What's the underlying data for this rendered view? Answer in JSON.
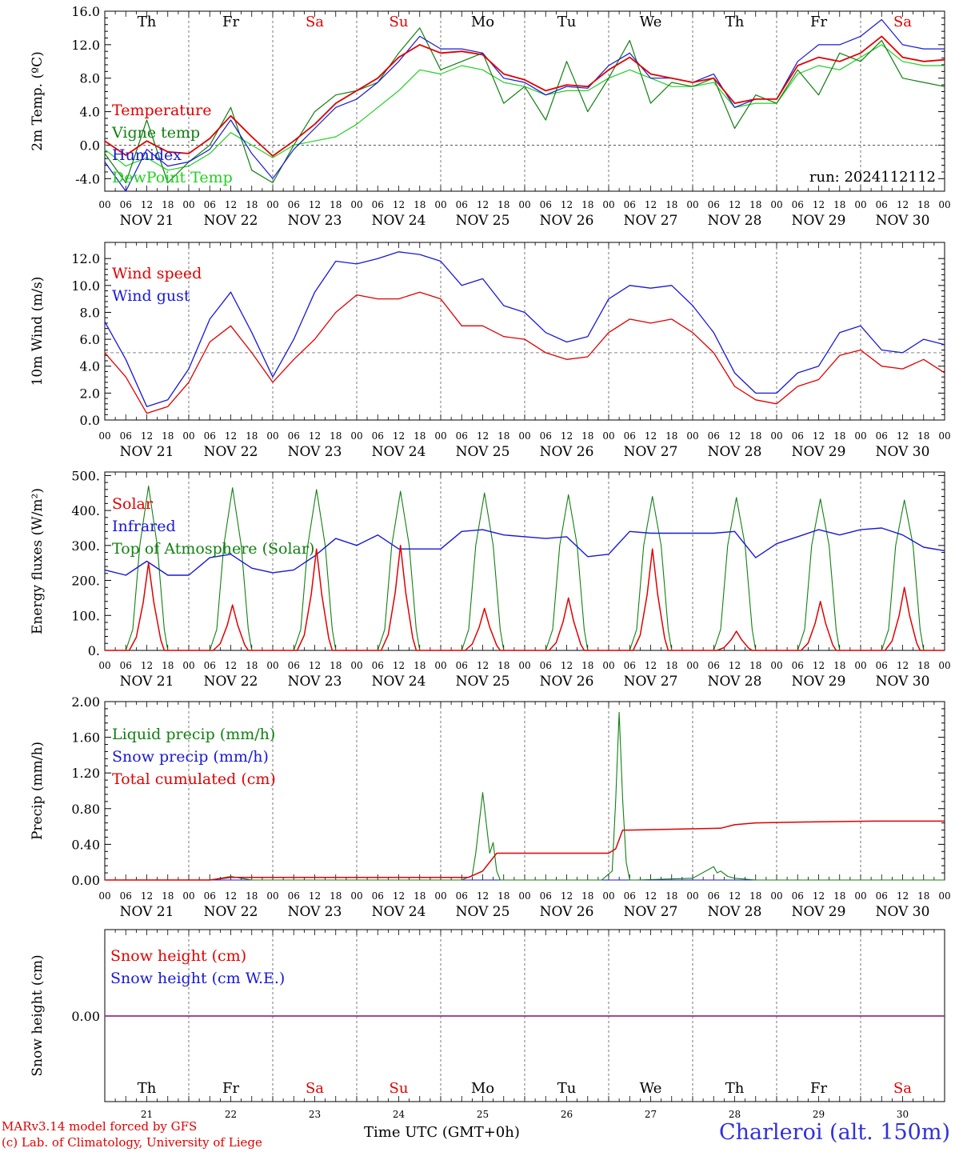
{
  "colors": {
    "red": "#e00000",
    "green": "#108010",
    "blue": "#1818d8",
    "lightgreen": "#22d022",
    "purple": "#8a2090",
    "grid": "#555555"
  },
  "weekdays": [
    {
      "label": "Th",
      "weekend": false
    },
    {
      "label": "Fr",
      "weekend": false
    },
    {
      "label": "Sa",
      "weekend": true
    },
    {
      "label": "Su",
      "weekend": true
    },
    {
      "label": "Mo",
      "weekend": false
    },
    {
      "label": "Tu",
      "weekend": false
    },
    {
      "label": "We",
      "weekend": false
    },
    {
      "label": "Th",
      "weekend": false
    },
    {
      "label": "Fr",
      "weekend": false
    },
    {
      "label": "Sa",
      "weekend": true
    }
  ],
  "hour_ticks": [
    "00",
    "06",
    "12",
    "18"
  ],
  "end_hour_tick": "00",
  "date_labels": [
    "NOV 21",
    "NOV 22",
    "NOV 23",
    "NOV 24",
    "NOV 25",
    "NOV 26",
    "NOV 27",
    "NOV 28",
    "NOV 29",
    "NOV 30"
  ],
  "day_numbers": [
    "21",
    "22",
    "23",
    "24",
    "25",
    "26",
    "27",
    "28",
    "29",
    "30"
  ],
  "footer": {
    "model": "MARv3.14 model forced by GFS",
    "lab": "(c) Lab. of Climatology, University of Liege",
    "xtitle": "Time UTC (GMT+0h)",
    "station": "Charleroi (alt. 150m)"
  },
  "chart_data": [
    {
      "type": "line",
      "ylabel": "2m Temp. (ºC)",
      "ylim": [
        -5.5,
        16
      ],
      "yticks": [
        "16.0",
        "12.0",
        "8.0",
        "4.0",
        "0.0",
        "-4.0"
      ],
      "ytick_values": [
        16,
        12,
        8,
        4,
        0,
        -4
      ],
      "ref_line": 0,
      "annotation": "run: 2024112112",
      "x_hours": [
        0,
        6,
        12,
        18,
        24,
        30,
        36,
        42,
        48,
        54,
        60,
        66,
        72,
        78,
        84,
        90,
        96,
        102,
        108,
        114,
        120,
        126,
        132,
        138,
        144,
        150,
        156,
        162,
        168,
        174,
        180,
        186,
        192,
        198,
        204,
        210,
        216,
        222,
        228,
        234,
        240
      ],
      "series": [
        {
          "name": "Temperature",
          "color": "red",
          "values": [
            0.5,
            -1.2,
            0.5,
            -0.8,
            -1.0,
            0.8,
            3.5,
            1.0,
            -1.3,
            0.5,
            2.5,
            5.0,
            6.5,
            8.0,
            10.5,
            12.0,
            11.0,
            11.2,
            10.8,
            8.5,
            7.8,
            6.5,
            7.2,
            7.0,
            9.0,
            10.5,
            8.5,
            8.0,
            7.5,
            8.0,
            5.0,
            5.5,
            5.5,
            9.5,
            10.5,
            10.0,
            11.0,
            13.0,
            10.5,
            10.0,
            10.2
          ]
        },
        {
          "name": "Vigne temp",
          "color": "green",
          "values": [
            -1.0,
            -4.5,
            3.0,
            -4.5,
            -2.0,
            0.0,
            4.5,
            -3.0,
            -4.5,
            0.0,
            4.0,
            6.0,
            6.5,
            7.5,
            11.0,
            14.0,
            9.0,
            10.0,
            11.0,
            5.0,
            7.0,
            3.0,
            10.0,
            4.0,
            8.0,
            12.5,
            5.0,
            7.5,
            7.0,
            8.0,
            2.0,
            6.0,
            5.0,
            9.0,
            6.0,
            11.0,
            10.0,
            12.5,
            8.0,
            7.5,
            7.0
          ]
        },
        {
          "name": "Humidex",
          "color": "blue",
          "values": [
            -2.0,
            -5.5,
            -0.5,
            -2.5,
            -2.0,
            -0.5,
            3.0,
            -1.0,
            -4.0,
            -0.5,
            2.0,
            4.5,
            5.5,
            7.5,
            10.0,
            13.0,
            11.5,
            11.5,
            11.0,
            8.0,
            7.5,
            6.0,
            7.0,
            6.8,
            9.5,
            11.0,
            8.0,
            8.0,
            7.5,
            8.5,
            4.5,
            5.5,
            5.5,
            10.0,
            12.0,
            12.0,
            13.0,
            15.0,
            12.0,
            11.5,
            11.5
          ]
        },
        {
          "name": "DewPoint Temp",
          "color": "lightgreen",
          "values": [
            -0.5,
            -2.5,
            -1.5,
            -3.0,
            -2.5,
            -1.0,
            1.5,
            0.0,
            -1.5,
            0.0,
            0.5,
            1.0,
            2.5,
            4.5,
            6.5,
            9.0,
            8.5,
            9.5,
            9.0,
            7.5,
            7.0,
            6.0,
            6.5,
            6.5,
            8.0,
            9.0,
            8.0,
            7.0,
            7.0,
            7.5,
            4.5,
            5.0,
            5.0,
            8.5,
            9.5,
            9.0,
            10.5,
            12.0,
            10.0,
            9.5,
            9.5
          ]
        }
      ]
    },
    {
      "type": "line",
      "ylabel": "10m Wind (m/s)",
      "ylim": [
        0,
        13.2
      ],
      "yticks": [
        "12.0",
        "10.0",
        "8.0",
        "6.0",
        "4.0",
        "2.0",
        "0.0"
      ],
      "ytick_values": [
        12,
        10,
        8,
        6,
        4,
        2,
        0
      ],
      "ref_line": 5,
      "x_hours": [
        0,
        6,
        12,
        18,
        24,
        30,
        36,
        42,
        48,
        54,
        60,
        66,
        72,
        78,
        84,
        90,
        96,
        102,
        108,
        114,
        120,
        126,
        132,
        138,
        144,
        150,
        156,
        162,
        168,
        174,
        180,
        186,
        192,
        198,
        204,
        210,
        216,
        222,
        228,
        234,
        240
      ],
      "series": [
        {
          "name": "Wind speed",
          "color": "red",
          "values": [
            5.0,
            3.2,
            0.5,
            1.0,
            2.8,
            5.8,
            7.0,
            5.0,
            2.8,
            4.5,
            6.0,
            8.0,
            9.3,
            9.0,
            9.0,
            9.5,
            9.0,
            7.0,
            7.0,
            6.2,
            6.0,
            5.0,
            4.5,
            4.7,
            6.5,
            7.5,
            7.2,
            7.5,
            6.5,
            5.0,
            2.5,
            1.5,
            1.2,
            2.5,
            3.0,
            4.8,
            5.2,
            4.0,
            3.8,
            4.5,
            3.5
          ]
        },
        {
          "name": "Wind gust",
          "color": "blue",
          "values": [
            7.3,
            4.5,
            1.0,
            1.5,
            3.8,
            7.5,
            9.5,
            6.5,
            3.2,
            6.0,
            9.5,
            11.8,
            11.6,
            12.0,
            12.5,
            12.3,
            11.8,
            10.0,
            10.5,
            8.5,
            8.0,
            6.5,
            5.8,
            6.2,
            9.0,
            10.0,
            9.8,
            10.0,
            8.5,
            6.5,
            3.5,
            2.0,
            2.0,
            3.5,
            4.0,
            6.5,
            7.0,
            5.2,
            5.0,
            6.0,
            5.6
          ]
        }
      ]
    },
    {
      "type": "line",
      "ylabel": "Energy fluxes (W/m²)",
      "ylim": [
        0,
        510
      ],
      "yticks": [
        "500.",
        "400.",
        "300.",
        "200.",
        "100.",
        "0."
      ],
      "ytick_values": [
        500,
        400,
        300,
        200,
        100,
        0
      ],
      "solar_peaks": [
        250,
        130,
        290,
        300,
        120,
        150,
        290,
        55,
        140,
        180
      ],
      "toa_peaks": [
        470,
        465,
        460,
        455,
        450,
        445,
        440,
        437,
        433,
        430
      ],
      "series": [
        {
          "name": "Solar",
          "color": "red"
        },
        {
          "name": "Infrared",
          "color": "blue",
          "x_hours": [
            0,
            6,
            12,
            18,
            24,
            30,
            36,
            42,
            48,
            54,
            60,
            66,
            72,
            78,
            84,
            90,
            96,
            102,
            108,
            114,
            120,
            126,
            132,
            138,
            144,
            150,
            156,
            162,
            168,
            174,
            180,
            186,
            192,
            198,
            204,
            210,
            216,
            222,
            228,
            234,
            240
          ],
          "values": [
            230,
            215,
            255,
            215,
            215,
            265,
            275,
            235,
            222,
            230,
            270,
            320,
            300,
            330,
            290,
            290,
            290,
            340,
            345,
            330,
            325,
            320,
            325,
            268,
            275,
            340,
            335,
            335,
            335,
            335,
            340,
            265,
            305,
            325,
            345,
            330,
            345,
            350,
            330,
            295,
            285
          ]
        },
        {
          "name": "Top of Atmosphere (Solar)",
          "color": "green"
        }
      ]
    },
    {
      "type": "line",
      "ylabel": "Precip (mm/h)",
      "ylim": [
        0,
        2
      ],
      "yticks": [
        "2.00",
        "1.60",
        "1.20",
        "0.80",
        "0.40",
        "0.00"
      ],
      "ytick_values": [
        2,
        1.6,
        1.2,
        0.8,
        0.4,
        0
      ],
      "series": [
        {
          "name": "Liquid precip (mm/h)",
          "color": "green",
          "x_hours": [
            0,
            30,
            33,
            36,
            39,
            42,
            102,
            105,
            106,
            108,
            110,
            111,
            112,
            113,
            114,
            116,
            142,
            145,
            146,
            147,
            148,
            149,
            150,
            152,
            168,
            174,
            175,
            176,
            178,
            180,
            186,
            240
          ],
          "values": [
            0,
            0,
            0.02,
            0.04,
            0.02,
            0,
            0,
            0.05,
            0.3,
            0.98,
            0.3,
            0.42,
            0.1,
            0,
            0,
            0,
            0,
            0.1,
            0.9,
            1.88,
            0.9,
            0.2,
            0,
            0,
            0.02,
            0.15,
            0.08,
            0.1,
            0.04,
            0.02,
            0,
            0
          ]
        },
        {
          "name": "Snow precip (mm/h)",
          "color": "blue",
          "x_hours": [
            0,
            240
          ],
          "values": [
            0,
            0
          ]
        },
        {
          "name": "Total cumulated (cm)",
          "color": "red",
          "x_hours": [
            0,
            30,
            36,
            104,
            108,
            112,
            144,
            146,
            148,
            150,
            176,
            180,
            186,
            200,
            220,
            240
          ],
          "values": [
            0,
            0,
            0.03,
            0.03,
            0.1,
            0.3,
            0.3,
            0.35,
            0.56,
            0.56,
            0.58,
            0.62,
            0.64,
            0.65,
            0.66,
            0.66
          ]
        }
      ]
    },
    {
      "type": "line",
      "ylabel": "Snow height (cm)",
      "yticks": [
        "0.00"
      ],
      "series": [
        {
          "name": "Snow height (cm)",
          "color": "red",
          "values": [
            0,
            0
          ]
        },
        {
          "name": "Snow height (cm W.E.)",
          "color": "blue",
          "values": [
            0,
            0
          ]
        }
      ]
    }
  ]
}
